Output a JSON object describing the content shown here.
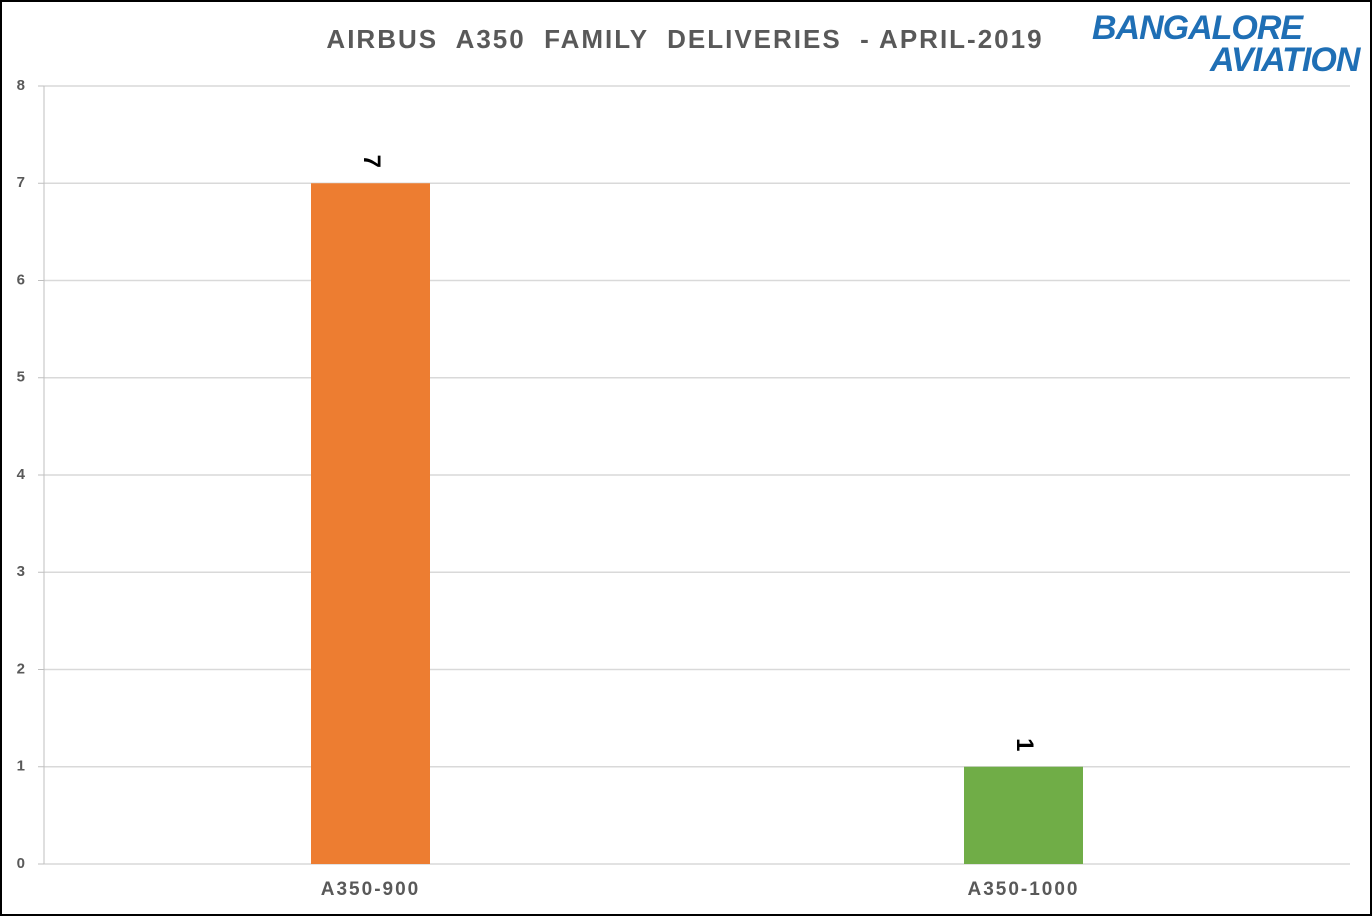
{
  "chart_data": {
    "type": "bar",
    "title": "AIRBUS  A350  FAMILY  DELIVERIES  - APRIL-2019",
    "categories": [
      "A350-900",
      "A350-1000"
    ],
    "values": [
      7,
      1
    ],
    "colors": [
      "#ed7d31",
      "#70ad47"
    ],
    "ylim": [
      0,
      8
    ],
    "yticks": [
      0,
      1,
      2,
      3,
      4,
      5,
      6,
      7,
      8
    ],
    "grid": true
  },
  "logo": {
    "line1": "BANGALORE",
    "line2": "AVIATION"
  }
}
